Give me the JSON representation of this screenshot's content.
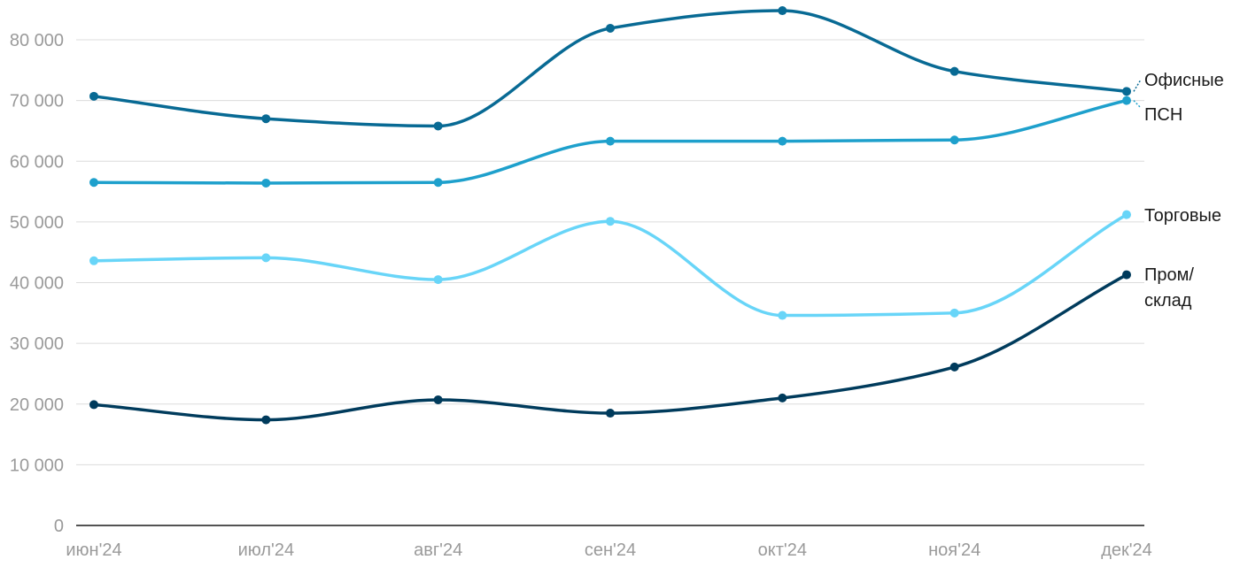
{
  "chart_data": {
    "type": "line",
    "title": "",
    "xlabel": "",
    "ylabel": "",
    "categories": [
      "июн'24",
      "июл'24",
      "авг'24",
      "сен'24",
      "окт'24",
      "ноя'24",
      "дек'24"
    ],
    "ylim": [
      0,
      80000
    ],
    "yticks": [
      0,
      10000,
      20000,
      30000,
      40000,
      50000,
      60000,
      70000,
      80000
    ],
    "ytick_labels": [
      "0",
      "10 000",
      "20 000",
      "30 000",
      "40 000",
      "50 000",
      "60 000",
      "70 000",
      "80 000"
    ],
    "grid": true,
    "legend": "end-of-line labels",
    "series": [
      {
        "name": "Офисные",
        "label_lines": [
          "Офисные"
        ],
        "color": "#086a94",
        "values": [
          70700,
          67000,
          65800,
          81900,
          84800,
          74800,
          71500
        ]
      },
      {
        "name": "ПСН",
        "label_lines": [
          "ПСН"
        ],
        "color": "#1ea0cc",
        "values": [
          56500,
          56400,
          56500,
          63300,
          63300,
          63500,
          70000
        ]
      },
      {
        "name": "Торговые",
        "label_lines": [
          "Торговые"
        ],
        "color": "#68d5f8",
        "values": [
          43600,
          44100,
          40500,
          50100,
          34600,
          35000,
          51200
        ]
      },
      {
        "name": "Пром/склад",
        "label_lines": [
          "Пром/",
          "склад"
        ],
        "color": "#003b5c",
        "values": [
          19900,
          17400,
          20700,
          18500,
          21000,
          26100,
          41300
        ]
      }
    ]
  }
}
